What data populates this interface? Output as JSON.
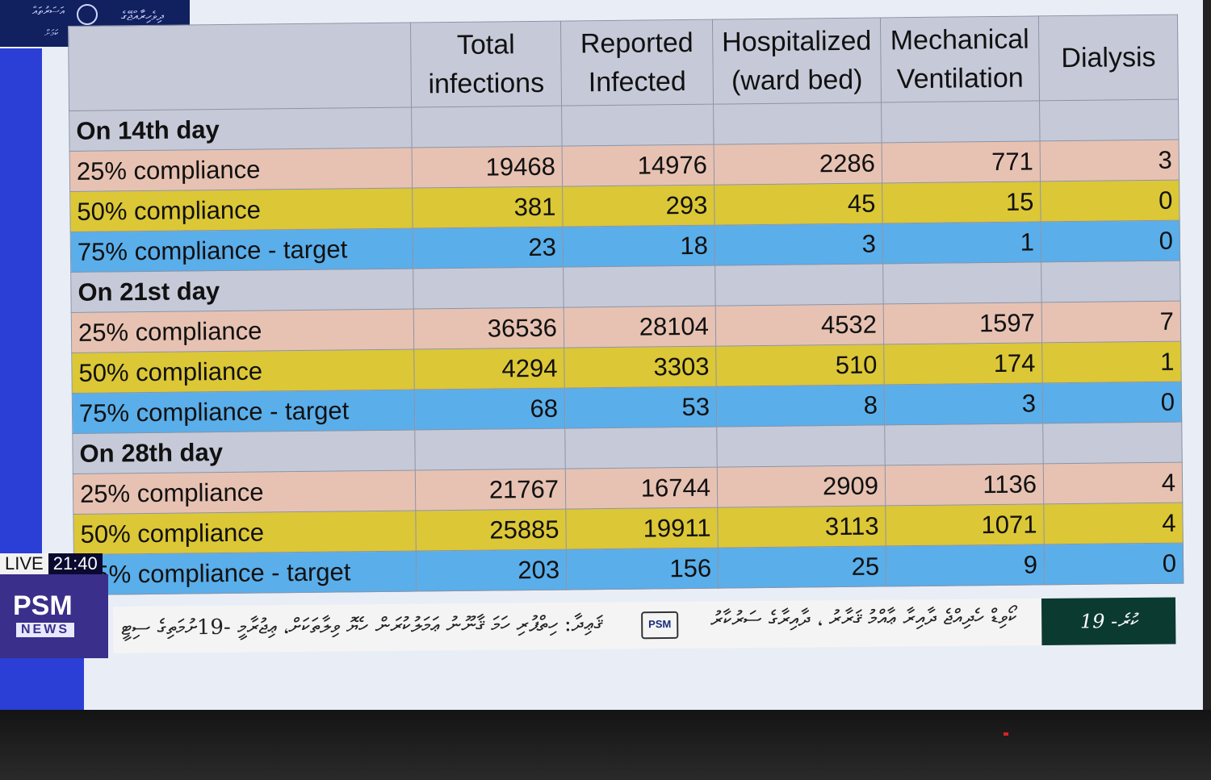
{
  "broadcast": {
    "live_label": "LIVE",
    "time": "21:40",
    "channel_logo": "PSM",
    "channel_logo_sub": "NEWS",
    "ticker_logo": "PSM",
    "ticker_date": "19 -ކުރެ",
    "ticker_text": "ޤަޢިދާ: ހިތްޕުރި ހަމަ ޤާނޫނު ޢަމަލުކުރަން ހެޔޮ ވިލާތަކަށް، ޢިޖުރާމީ -19ށުމަތިގެ ސިޓީ",
    "ticker_text2": "ކޯވިޑް ހެދިއްޖެ ދާއިރާ ޢާއްމު ޤަރާރު ، ދާއިރާގެ ސަރުކާރު"
  },
  "logo_block": {
    "text_left": "އަސަރުތައް",
    "text_right": "ދިވެހިރާއްޖޭގެ",
    "text_bottom": "ކަމަށް",
    "icon": "hexagon-heartbeat-icon"
  },
  "table": {
    "headers": [
      "Total infections",
      "Reported Infected",
      "Hospitalized (ward bed)",
      "Mechanical Ventilation",
      "Dialysis"
    ],
    "header_lines": [
      [
        "Total",
        "infections"
      ],
      [
        "Reported",
        "Infected"
      ],
      [
        "Hospitalized",
        "(ward bed)"
      ],
      [
        "Mechanical",
        "Ventilation"
      ],
      [
        "Dialysis"
      ]
    ],
    "sections": [
      {
        "title": "On 14th day",
        "rows": [
          {
            "label": "25% compliance",
            "values": [
              "19468",
              "14976",
              "2286",
              "771",
              "3"
            ]
          },
          {
            "label": "50% compliance",
            "values": [
              "381",
              "293",
              "45",
              "15",
              "0"
            ]
          },
          {
            "label": "75% compliance - target",
            "values": [
              "23",
              "18",
              "3",
              "1",
              "0"
            ]
          }
        ]
      },
      {
        "title": "On 21st day",
        "rows": [
          {
            "label": "25% compliance",
            "values": [
              "36536",
              "28104",
              "4532",
              "1597",
              "7"
            ]
          },
          {
            "label": "50% compliance",
            "values": [
              "4294",
              "3303",
              "510",
              "174",
              "1"
            ]
          },
          {
            "label": "75% compliance - target",
            "values": [
              "68",
              "53",
              "8",
              "3",
              "0"
            ]
          }
        ]
      },
      {
        "title": "On 28th day",
        "rows": [
          {
            "label": "25% compliance",
            "values": [
              "21767",
              "16744",
              "2909",
              "1136",
              "4"
            ]
          },
          {
            "label": "50% compliance",
            "values": [
              "25885",
              "19911",
              "3113",
              "1071",
              "4"
            ]
          },
          {
            "label": "75% compliance - target",
            "values": [
              "203",
              "156",
              "25",
              "9",
              "0"
            ]
          }
        ]
      }
    ]
  },
  "colors": {
    "compliance_25": "#e7c2b2",
    "compliance_50": "#dcc736",
    "compliance_75": "#5aaeea",
    "header_bg": "#c6cad8"
  }
}
